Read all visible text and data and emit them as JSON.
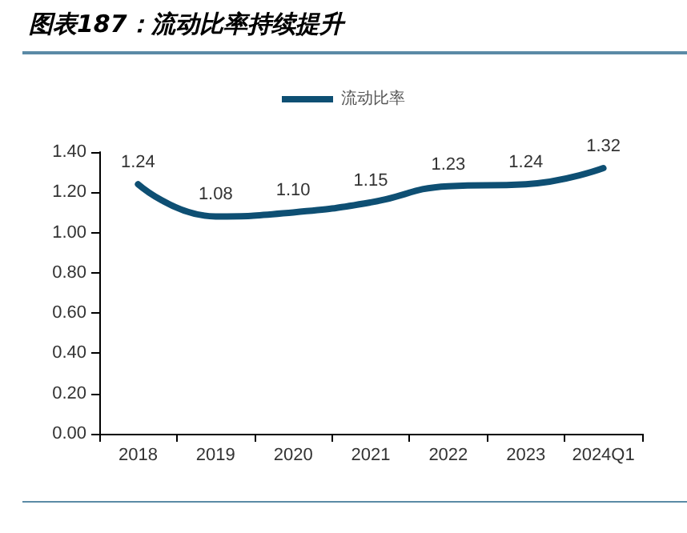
{
  "chart_data": {
    "type": "line",
    "title": "图表187：流动比率持续提升",
    "categories": [
      "2018",
      "2019",
      "2020",
      "2021",
      "2022",
      "2023",
      "2024Q1"
    ],
    "series": [
      {
        "name": "流动比率",
        "color": "#0e4f73",
        "values": [
          1.24,
          1.08,
          1.1,
          1.15,
          1.23,
          1.24,
          1.32
        ],
        "value_labels": [
          "1.24",
          "1.08",
          "1.10",
          "1.15",
          "1.23",
          "1.24",
          "1.32"
        ]
      }
    ],
    "ylim": [
      0,
      1.4
    ],
    "yticks": [
      {
        "value": 0,
        "label": "0.00"
      },
      {
        "value": 0.2,
        "label": "0.20"
      },
      {
        "value": 0.4,
        "label": "0.40"
      },
      {
        "value": 0.6,
        "label": "0.60"
      },
      {
        "value": 0.8,
        "label": "0.80"
      },
      {
        "value": 1.0,
        "label": "1.00"
      },
      {
        "value": 1.2,
        "label": "1.20"
      },
      {
        "value": 1.4,
        "label": "1.40"
      }
    ],
    "grid": false,
    "legend": "top",
    "marker": "none",
    "line_style": "solid"
  }
}
